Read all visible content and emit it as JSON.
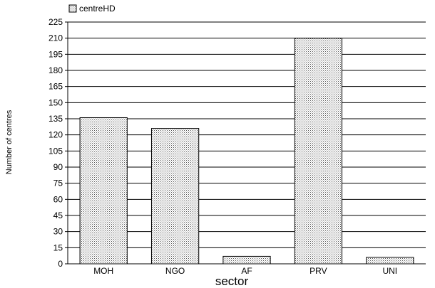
{
  "chart_data": {
    "type": "bar",
    "categories": [
      "MOH",
      "NGO",
      "AF",
      "PRV",
      "UNI"
    ],
    "series": [
      {
        "name": "centreHD",
        "values": [
          136,
          126,
          7,
          210,
          6
        ]
      }
    ],
    "xlabel": "sector",
    "ylabel": "Number of centres",
    "ylim": [
      0,
      225
    ],
    "yticks": [
      0,
      15,
      30,
      45,
      60,
      75,
      90,
      105,
      120,
      135,
      150,
      165,
      180,
      195,
      210,
      225
    ],
    "grid": true,
    "legend_position": "top-left"
  }
}
